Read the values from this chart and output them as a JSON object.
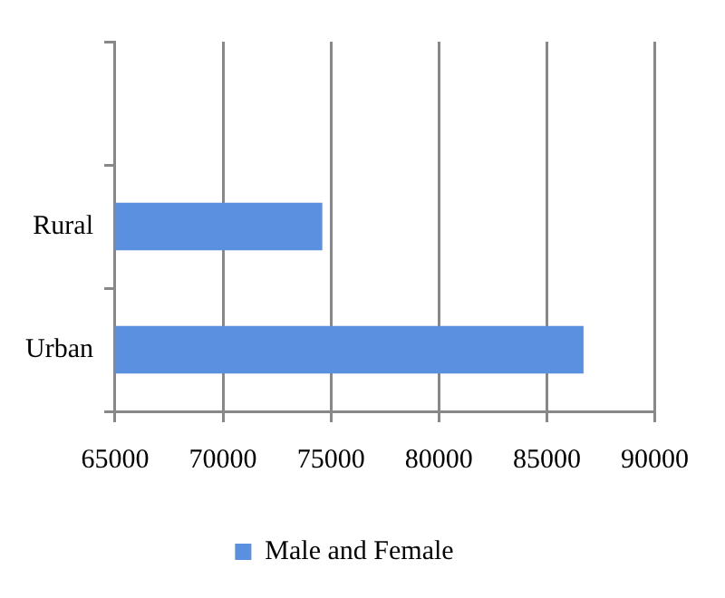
{
  "chart_data": {
    "type": "bar",
    "orientation": "horizontal",
    "categories": [
      null,
      "Rural",
      "Urban"
    ],
    "series": [
      {
        "name": "Male and Female",
        "color": "#5b8fe0",
        "values": [
          null,
          74600,
          86700
        ]
      }
    ],
    "xlim": [
      65000,
      90000
    ],
    "xticks": [
      65000,
      70000,
      75000,
      80000,
      85000,
      90000
    ],
    "grid": "x",
    "legend": "bottom"
  }
}
